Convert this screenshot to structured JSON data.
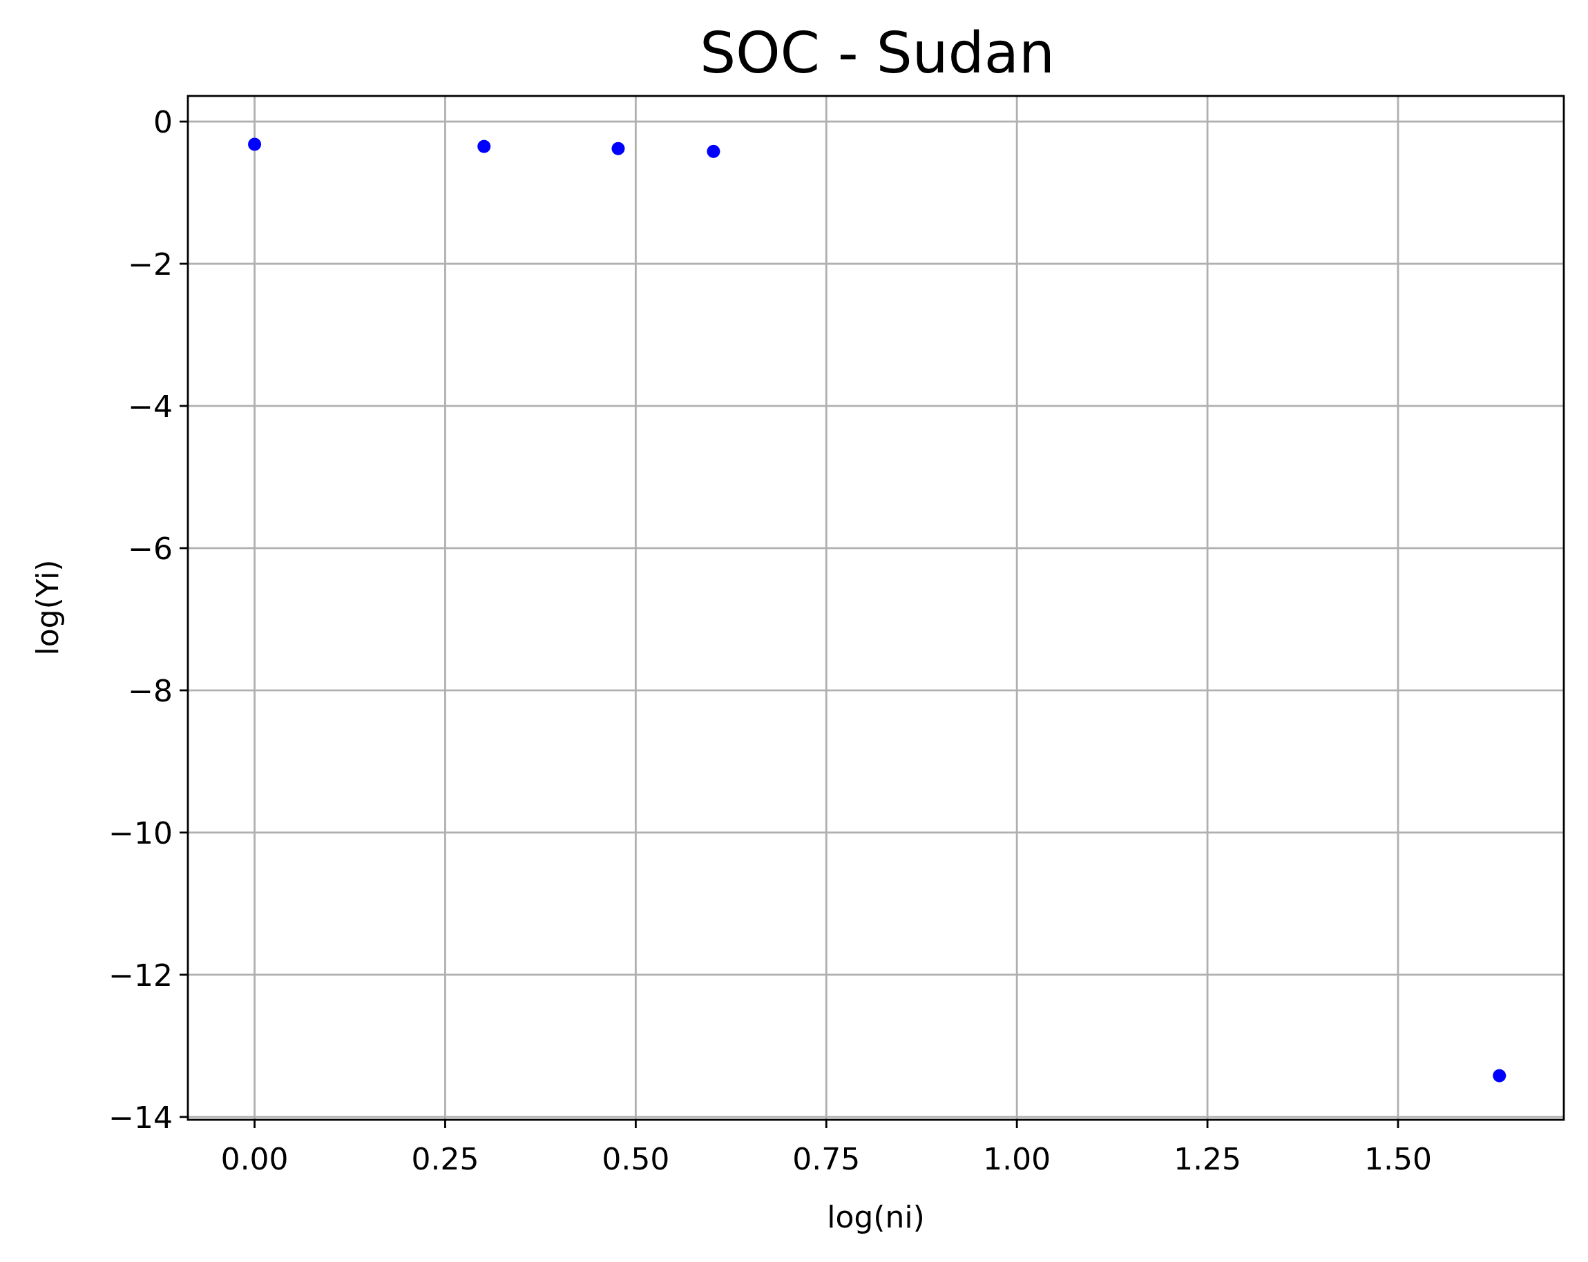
{
  "chart_data": {
    "type": "scatter",
    "title": "SOC - Sudan",
    "xlabel": "log(ni)",
    "ylabel": "log(Yi)",
    "xlim": [
      -0.0875,
      1.7175
    ],
    "ylim": [
      -14.04,
      0.36
    ],
    "grid": true,
    "marker_color": "#0000ff",
    "xticks": [
      0.0,
      0.25,
      0.5,
      0.75,
      1.0,
      1.25,
      1.5
    ],
    "xtick_labels": [
      "0.00",
      "0.25",
      "0.50",
      "0.75",
      "1.00",
      "1.25",
      "1.50"
    ],
    "yticks": [
      0,
      -2,
      -4,
      -6,
      -8,
      -10,
      -12,
      -14
    ],
    "ytick_labels": [
      "0",
      "−2",
      "−4",
      "−6",
      "−8",
      "−10",
      "−12",
      "−14"
    ],
    "points": [
      {
        "x": 0.0,
        "y": -0.32
      },
      {
        "x": 0.301,
        "y": -0.35
      },
      {
        "x": 0.477,
        "y": -0.38
      },
      {
        "x": 0.602,
        "y": -0.42
      },
      {
        "x": 1.633,
        "y": -13.42
      }
    ]
  }
}
